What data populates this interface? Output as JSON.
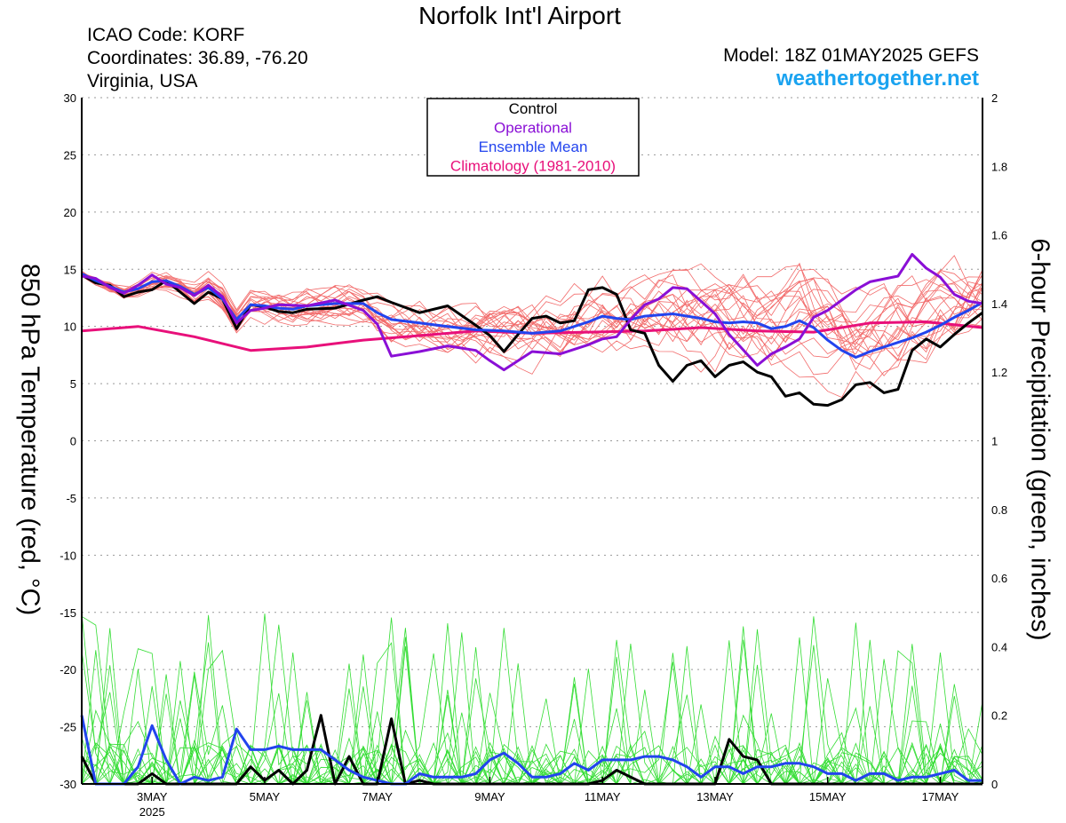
{
  "title": "Norfolk Int'l Airport",
  "station": {
    "icao": "ICAO Code: KORF",
    "coords": "Coordinates: 36.89, -76.20",
    "region": "Virginia, USA"
  },
  "model": "Model: 18Z 01MAY2025 GEFS",
  "website": "weathertogether.net",
  "chart_data": {
    "type": "line",
    "title": "Norfolk Int'l Airport",
    "ylabel": "850 hPa Temperature (red, °C)",
    "y2label": "6-hour Precipitation (green, inches)",
    "ylim": [
      -30,
      30
    ],
    "y2lim": [
      0,
      2
    ],
    "x_unit": "days since 01MAY2025 18Z",
    "xlim": [
      0,
      16
    ],
    "xticks": [
      {
        "x": 1.25,
        "label": "3MAY",
        "sub": "2025"
      },
      {
        "x": 3.25,
        "label": "5MAY"
      },
      {
        "x": 5.25,
        "label": "7MAY"
      },
      {
        "x": 7.25,
        "label": "9MAY"
      },
      {
        "x": 9.25,
        "label": "11MAY"
      },
      {
        "x": 11.25,
        "label": "13MAY"
      },
      {
        "x": 13.25,
        "label": "15MAY"
      },
      {
        "x": 15.25,
        "label": "17MAY"
      }
    ],
    "yticks": [
      30,
      25,
      20,
      15,
      10,
      5,
      0,
      -5,
      -10,
      -15,
      -20,
      -25,
      -30
    ],
    "y2ticks": [
      2,
      1.8,
      1.6,
      1.4,
      1.2,
      1,
      0.8,
      0.6,
      0.4,
      0.2,
      0
    ],
    "grid": true,
    "legend": {
      "position": "top-center",
      "entries": [
        {
          "label": "Control",
          "color": "#000000"
        },
        {
          "label": "Operational",
          "color": "#8a0fd6"
        },
        {
          "label": "Ensemble Mean",
          "color": "#2244ee"
        },
        {
          "label": "Climatology (1981-2010)",
          "color": "#e8107a"
        }
      ]
    },
    "colors": {
      "members_temp": "#f26a6a",
      "members_precip": "#33dd33",
      "control": "#000000",
      "operational": "#8a0fd6",
      "mean": "#2244ee",
      "climatology": "#e8107a"
    },
    "series_temp": [
      {
        "name": "Control",
        "x": [
          0,
          0.25,
          0.5,
          0.75,
          1,
          1.25,
          1.5,
          1.75,
          2,
          2.25,
          2.5,
          2.75,
          3,
          3.25,
          3.5,
          3.75,
          4,
          4.5,
          5,
          5.25,
          5.5,
          6,
          6.5,
          7,
          7.25,
          7.5,
          7.75,
          8,
          8.25,
          8.5,
          8.75,
          9,
          9.25,
          9.5,
          9.75,
          10,
          10.25,
          10.5,
          10.75,
          11,
          11.25,
          11.5,
          11.75,
          12,
          12.25,
          12.5,
          12.75,
          13,
          13.25,
          13.5,
          13.75,
          14,
          14.25,
          14.5,
          14.75,
          15,
          15.25,
          15.5,
          15.75,
          16
        ],
        "y": [
          14.5,
          13.8,
          13.6,
          12.6,
          13.0,
          13.2,
          14.0,
          13.0,
          12.0,
          13.0,
          12.4,
          9.8,
          11.9,
          11.7,
          11.3,
          11.2,
          11.5,
          11.6,
          12.3,
          12.6,
          12.1,
          11.2,
          11.8,
          10.1,
          9.2,
          7.8,
          9.3,
          10.7,
          10.9,
          10.3,
          10.5,
          13.2,
          13.4,
          12.8,
          9.7,
          9.4,
          6.6,
          5.2,
          6.6,
          7.0,
          5.6,
          6.6,
          6.9,
          6.0,
          5.6,
          3.9,
          4.2,
          3.2,
          3.1,
          3.6,
          4.9,
          5.1,
          4.2,
          4.5,
          7.9,
          8.9,
          8.2,
          9.3,
          10.3,
          11.2
        ]
      },
      {
        "name": "Operational",
        "x": [
          0,
          0.25,
          0.5,
          0.75,
          1,
          1.25,
          1.5,
          1.75,
          2,
          2.25,
          2.5,
          2.75,
          3,
          3.25,
          3.5,
          4,
          4.5,
          5,
          5.25,
          5.5,
          6,
          6.5,
          7,
          7.25,
          7.5,
          8,
          8.5,
          9,
          9.25,
          9.5,
          9.75,
          10,
          10.25,
          10.5,
          10.75,
          11,
          11.25,
          11.5,
          12,
          12.25,
          12.5,
          12.75,
          13,
          13.25,
          13.5,
          13.75,
          14,
          14.5,
          14.75,
          15,
          15.25,
          15.5,
          15.75,
          16
        ],
        "y": [
          14.4,
          14.2,
          13.4,
          12.9,
          13.6,
          14.5,
          13.7,
          13.4,
          12.7,
          13.6,
          12.6,
          10.3,
          11.4,
          11.6,
          11.9,
          11.8,
          12.3,
          11.4,
          10.2,
          7.4,
          7.8,
          8.3,
          7.9,
          7.0,
          6.2,
          7.8,
          7.6,
          8.4,
          8.9,
          9.1,
          10.6,
          11.9,
          12.4,
          13.4,
          13.3,
          12.2,
          11.1,
          9.3,
          6.6,
          7.6,
          8.2,
          8.9,
          10.8,
          11.4,
          12.3,
          13.2,
          13.9,
          14.4,
          16.3,
          15.1,
          14.3,
          12.8,
          12.2,
          12.0
        ]
      },
      {
        "name": "Ensemble Mean",
        "x": [
          0,
          0.25,
          0.5,
          0.75,
          1,
          1.25,
          1.5,
          1.75,
          2,
          2.25,
          2.5,
          2.75,
          3,
          3.25,
          3.5,
          3.75,
          4,
          4.5,
          5,
          5.25,
          5.5,
          6,
          6.5,
          7,
          7.5,
          8,
          8.5,
          9,
          9.25,
          9.5,
          9.75,
          10,
          10.5,
          11,
          11.25,
          11.5,
          11.75,
          12,
          12.25,
          12.5,
          12.75,
          13,
          13.25,
          13.5,
          13.75,
          14,
          14.5,
          14.75,
          15,
          15.25,
          15.5,
          15.75,
          16
        ],
        "y": [
          14.6,
          14.0,
          13.5,
          13.0,
          13.3,
          13.9,
          14.0,
          13.5,
          12.8,
          13.4,
          12.4,
          10.6,
          11.9,
          11.8,
          11.6,
          11.5,
          11.8,
          12.0,
          12.0,
          11.2,
          10.6,
          10.3,
          10.0,
          9.7,
          9.6,
          9.4,
          9.6,
          10.4,
          10.9,
          10.7,
          10.6,
          10.9,
          11.1,
          10.7,
          10.4,
          10.3,
          10.4,
          10.3,
          9.8,
          10.0,
          10.5,
          9.9,
          8.8,
          7.9,
          7.3,
          7.8,
          8.6,
          9.0,
          9.5,
          10.1,
          10.8,
          11.4,
          12.1
        ]
      },
      {
        "name": "Climatology (1981-2010)",
        "x": [
          0,
          1,
          2,
          3,
          4,
          5,
          6,
          7,
          8,
          9,
          10,
          11,
          12,
          13,
          14,
          15,
          16
        ],
        "y": [
          9.6,
          10.0,
          9.1,
          7.9,
          8.2,
          8.8,
          9.2,
          9.6,
          9.4,
          9.5,
          9.6,
          9.9,
          9.6,
          9.5,
          10.3,
          10.4,
          9.9
        ]
      }
    ],
    "series_precip": [
      {
        "name": "Control",
        "x": [
          0,
          0.25,
          0.5,
          0.75,
          1,
          1.25,
          1.5,
          1.75,
          2,
          2.25,
          2.5,
          2.75,
          3,
          3.25,
          3.5,
          3.75,
          4,
          4.25,
          4.5,
          4.75,
          5,
          5.25,
          5.5,
          5.75,
          6,
          6.25,
          6.5,
          6.75,
          7,
          7.25,
          7.5,
          8,
          8.5,
          9,
          9.25,
          9.5,
          10,
          10.25,
          10.5,
          10.75,
          11,
          11.25,
          11.5,
          11.75,
          12,
          12.25,
          12.5,
          12.75,
          13,
          16
        ],
        "y": [
          0.08,
          0.0,
          0.0,
          0.0,
          0.0,
          0.03,
          0.0,
          0.0,
          0.0,
          0.0,
          0.0,
          0.0,
          0.05,
          0.01,
          0.04,
          0.0,
          0.04,
          0.2,
          0.0,
          0.08,
          0.0,
          0.0,
          0.19,
          0.0,
          0.01,
          0.0,
          0.0,
          0.0,
          0.0,
          0.0,
          0.0,
          0.0,
          0.0,
          0.0,
          0.01,
          0.04,
          0.0,
          0.0,
          0.0,
          0.0,
          0.0,
          0.0,
          0.13,
          0.08,
          0.07,
          0.0,
          0.0,
          0.0,
          0.0,
          0.0
        ]
      },
      {
        "name": "Ensemble Mean",
        "x": [
          0,
          0.25,
          0.5,
          0.75,
          1,
          1.25,
          1.5,
          1.75,
          2,
          2.25,
          2.5,
          2.75,
          3,
          3.25,
          3.5,
          3.75,
          4,
          4.25,
          4.5,
          4.75,
          5,
          5.25,
          5.5,
          5.75,
          6,
          6.25,
          6.5,
          6.75,
          7,
          7.25,
          7.5,
          7.75,
          8,
          8.25,
          8.5,
          8.75,
          9,
          9.25,
          9.5,
          9.75,
          10,
          10.25,
          10.5,
          10.75,
          11,
          11.25,
          11.5,
          11.75,
          12,
          12.25,
          12.5,
          12.75,
          13,
          13.25,
          13.5,
          13.75,
          14,
          14.25,
          14.5,
          14.75,
          15,
          15.25,
          15.5,
          15.75,
          16
        ],
        "y": [
          0.2,
          0.0,
          0.0,
          0.0,
          0.05,
          0.17,
          0.07,
          0.0,
          0.02,
          0.01,
          0.02,
          0.16,
          0.1,
          0.1,
          0.11,
          0.1,
          0.1,
          0.1,
          0.07,
          0.04,
          0.02,
          0.01,
          0.0,
          0.0,
          0.03,
          0.02,
          0.02,
          0.02,
          0.03,
          0.07,
          0.09,
          0.06,
          0.02,
          0.02,
          0.03,
          0.06,
          0.04,
          0.07,
          0.07,
          0.07,
          0.08,
          0.08,
          0.07,
          0.05,
          0.02,
          0.05,
          0.05,
          0.03,
          0.05,
          0.05,
          0.06,
          0.06,
          0.05,
          0.03,
          0.03,
          0.01,
          0.03,
          0.03,
          0.01,
          0.02,
          0.02,
          0.03,
          0.04,
          0.01,
          0.01
        ]
      }
    ]
  }
}
